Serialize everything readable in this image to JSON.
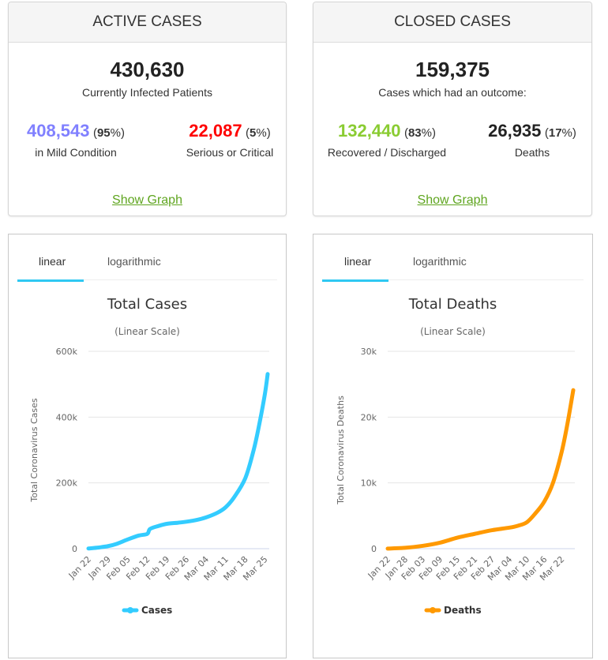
{
  "active_cases": {
    "header": "ACTIVE CASES",
    "total": "430,630",
    "total_label": "Currently Infected Patients",
    "mild": {
      "value": "408,543",
      "pct": "95",
      "label": "in Mild Condition",
      "color": "#8080ff"
    },
    "serious": {
      "value": "22,087",
      "pct": "5",
      "label": "Serious or Critical",
      "color": "#ff0000"
    },
    "show_graph": "Show Graph"
  },
  "closed_cases": {
    "header": "CLOSED CASES",
    "total": "159,375",
    "total_label": "Cases which had an outcome:",
    "recovered": {
      "value": "132,440",
      "pct": "83",
      "label": "Recovered / Discharged",
      "color": "#8acc32"
    },
    "deaths": {
      "value": "26,935",
      "pct": "17",
      "label": "Deaths",
      "color": "#222222"
    },
    "show_graph": "Show Graph"
  },
  "tabs": {
    "linear": "linear",
    "log": "logarithmic",
    "active_color": "#2fc8f2"
  },
  "chart_data": [
    {
      "type": "line",
      "title": "Total Cases",
      "subtitle": "(Linear Scale)",
      "ylabel": "Total Coronavirus Cases",
      "xlabel": "",
      "ylim": [
        0,
        600000
      ],
      "yticks": [
        0,
        200000,
        400000,
        600000
      ],
      "ytick_labels": [
        "0",
        "200k",
        "400k",
        "600k"
      ],
      "x_tick_labels": [
        "Jan 22",
        "Jan 29",
        "Feb 05",
        "Feb 12",
        "Feb 19",
        "Feb 26",
        "Mar 04",
        "Mar 11",
        "Mar 18",
        "Mar 25"
      ],
      "grid": true,
      "legend": "bottom-center",
      "series": [
        {
          "name": "Cases",
          "color": "#33ccff",
          "x": [
            "Jan 22",
            "Jan 25",
            "Jan 29",
            "Feb 01",
            "Feb 05",
            "Feb 09",
            "Feb 12",
            "Feb 13",
            "Feb 16",
            "Feb 19",
            "Feb 23",
            "Feb 26",
            "Mar 01",
            "Mar 04",
            "Mar 08",
            "Mar 11",
            "Mar 14",
            "Mar 18",
            "Mar 21",
            "Mar 23",
            "Mar 25",
            "Mar 26"
          ],
          "values": [
            580,
            2900,
            7800,
            14500,
            28000,
            40000,
            45000,
            60000,
            69000,
            75600,
            79000,
            82000,
            88000,
            95000,
            109000,
            126000,
            156000,
            214000,
            300000,
            378000,
            470000,
            531000
          ]
        }
      ]
    },
    {
      "type": "line",
      "title": "Total Deaths",
      "subtitle": "(Linear Scale)",
      "ylabel": "Total Coronavirus Deaths",
      "xlabel": "",
      "ylim": [
        0,
        30000
      ],
      "yticks": [
        0,
        10000,
        20000,
        30000
      ],
      "ytick_labels": [
        "0",
        "10k",
        "20k",
        "30k"
      ],
      "x_tick_labels": [
        "Jan 22",
        "Jan 28",
        "Feb 03",
        "Feb 09",
        "Feb 15",
        "Feb 21",
        "Feb 27",
        "Mar 04",
        "Mar 10",
        "Mar 16",
        "Mar 22"
      ],
      "grid": true,
      "legend": "bottom-center",
      "series": [
        {
          "name": "Deaths",
          "color": "#ff9900",
          "x": [
            "Jan 22",
            "Jan 28",
            "Feb 03",
            "Feb 09",
            "Feb 15",
            "Feb 21",
            "Feb 27",
            "Mar 04",
            "Mar 07",
            "Mar 10",
            "Mar 13",
            "Mar 16",
            "Mar 19",
            "Mar 22",
            "Mar 24",
            "Mar 26"
          ],
          "values": [
            17,
            132,
            427,
            910,
            1670,
            2250,
            2810,
            3200,
            3500,
            4020,
            5400,
            7150,
            10000,
            14700,
            19000,
            24100
          ]
        }
      ]
    }
  ]
}
